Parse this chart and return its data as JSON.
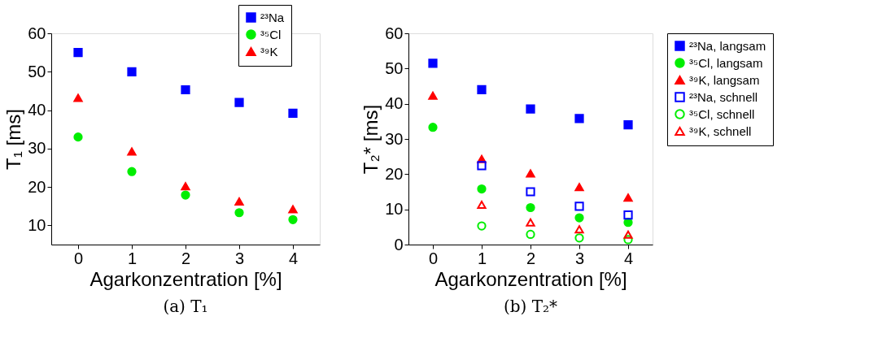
{
  "chart_data": [
    {
      "type": "scatter",
      "title": "(a) T₁",
      "xlabel": "Agarkonzentration [%]",
      "ylabel": "T₁ [ms]",
      "x": [
        0,
        1,
        2,
        3,
        4
      ],
      "xlim": [
        -0.5,
        4.5
      ],
      "xticks": [
        0,
        1,
        2,
        3,
        4
      ],
      "ylim": [
        5,
        60
      ],
      "yticks": [
        10,
        20,
        30,
        40,
        50,
        60
      ],
      "grid": false,
      "legend": "top right",
      "series": [
        {
          "name": "²³Na",
          "color": "#0000ff",
          "marker": "square",
          "values": [
            55,
            50,
            45.3,
            42,
            39.2
          ]
        },
        {
          "name": "³⁵Cl",
          "color": "#00ee00",
          "marker": "circle",
          "values": [
            33,
            24,
            17.9,
            13.3,
            11.5
          ]
        },
        {
          "name": "³⁹K",
          "color": "#ff0000",
          "marker": "triangle",
          "values": [
            43.2,
            29.2,
            20.2,
            16.2,
            14.2
          ]
        }
      ]
    },
    {
      "type": "scatter",
      "title": "(b) T₂*",
      "xlabel": "Agarkonzentration [%]",
      "ylabel": "T₂* [ms]",
      "x": [
        0,
        1,
        2,
        3,
        4
      ],
      "xlim": [
        -0.5,
        4.5
      ],
      "xticks": [
        0,
        1,
        2,
        3,
        4
      ],
      "ylim": [
        0,
        60
      ],
      "yticks": [
        0,
        10,
        20,
        30,
        40,
        50,
        60
      ],
      "grid": false,
      "legend": "right",
      "series": [
        {
          "name": "²³Na, langsam",
          "color": "#0000ff",
          "marker": "square",
          "values": [
            51.5,
            44,
            38.5,
            35.8,
            34
          ]
        },
        {
          "name": "³⁵Cl, langsam",
          "color": "#00ee00",
          "marker": "circle",
          "values": [
            33.3,
            15.8,
            10.5,
            7.6,
            6.3
          ]
        },
        {
          "name": "³⁹K, langsam",
          "color": "#ff0000",
          "marker": "triangle",
          "values": [
            42.3,
            24.3,
            20.2,
            16.3,
            13.3
          ]
        },
        {
          "name": "²³Na, schnell",
          "color": "#0000ff",
          "marker": "square",
          "values": [
            null,
            22.4,
            15,
            10.9,
            8.4
          ]
        },
        {
          "name": "³⁵Cl, schnell",
          "color": "#00ee00",
          "marker": "circle",
          "values": [
            null,
            5.3,
            2.9,
            1.9,
            1.4
          ]
        },
        {
          "name": "³⁹K, schnell",
          "color": "#ff0000",
          "marker": "triangle",
          "values": [
            null,
            11.3,
            6.3,
            4.3,
            2.8
          ]
        }
      ]
    }
  ]
}
